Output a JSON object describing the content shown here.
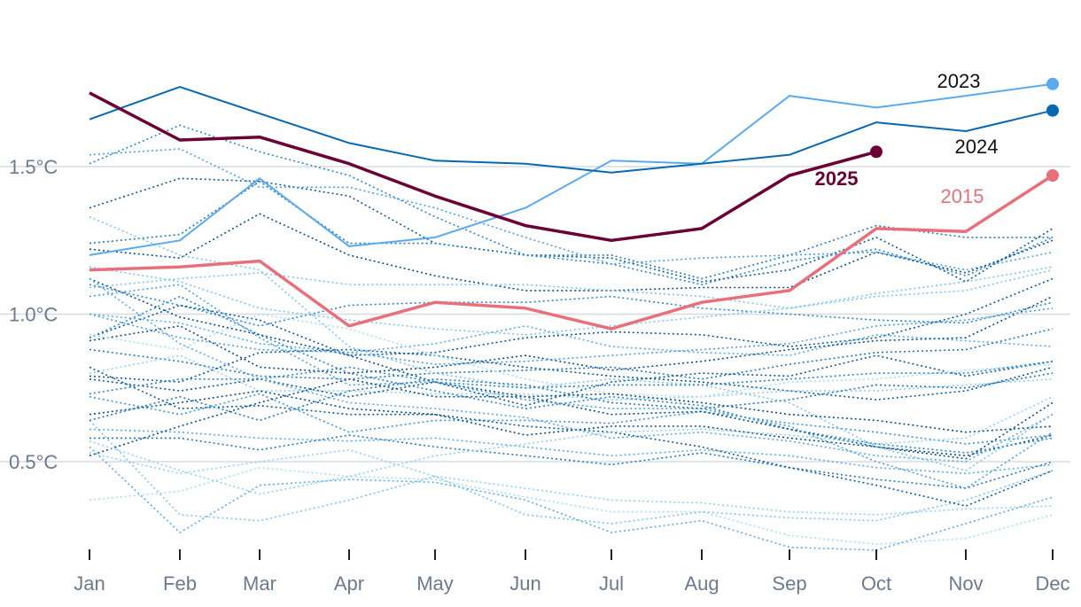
{
  "chart_data": {
    "type": "line",
    "title": "",
    "xlabel": "",
    "ylabel": "",
    "categories": [
      "Jan",
      "Feb",
      "Mar",
      "Apr",
      "May",
      "Jun",
      "Jul",
      "Aug",
      "Sep",
      "Oct",
      "Nov",
      "Dec"
    ],
    "ylim": [
      0.2,
      1.95
    ],
    "yticks": [
      0.5,
      1.0,
      1.5
    ],
    "ytick_labels": [
      "0.5°C",
      "1.0°C",
      "1.5°C"
    ],
    "grid": true,
    "highlight_series": [
      {
        "name": "2025",
        "label": "2025",
        "color": "#6b0036",
        "values": [
          1.75,
          1.59,
          1.6,
          1.51,
          1.4,
          1.3,
          1.25,
          1.29,
          1.47,
          1.55,
          null,
          null
        ]
      },
      {
        "name": "2015",
        "label": "2015",
        "color": "#e8707a",
        "values": [
          1.15,
          1.16,
          1.18,
          0.96,
          1.04,
          1.02,
          0.95,
          1.04,
          1.08,
          1.29,
          1.28,
          1.47
        ]
      },
      {
        "name": "2024",
        "label": "2024",
        "color": "#0768b2",
        "values": [
          1.66,
          1.77,
          1.68,
          1.58,
          1.52,
          1.51,
          1.48,
          1.51,
          1.54,
          1.65,
          1.62,
          1.69
        ]
      },
      {
        "name": "2023",
        "label": "2023",
        "color": "#5aaaf0",
        "values": [
          1.2,
          1.25,
          1.46,
          1.23,
          1.26,
          1.36,
          1.52,
          1.51,
          1.74,
          1.7,
          1.74,
          1.78
        ]
      }
    ],
    "background_series": [
      {
        "color": "#0a5a9e",
        "values": [
          1.36,
          1.46,
          1.45,
          1.4,
          1.24,
          1.2,
          1.19,
          1.11,
          1.15,
          1.26,
          1.11,
          1.29
        ]
      },
      {
        "color": "#1f78c8",
        "values": [
          1.24,
          1.27,
          1.45,
          1.24,
          1.24,
          1.2,
          1.2,
          1.12,
          1.2,
          1.3,
          1.26,
          1.26
        ]
      },
      {
        "color": "#2a85d6",
        "values": [
          1.51,
          1.64,
          1.55,
          1.47,
          1.33,
          1.2,
          1.17,
          1.1,
          1.18,
          1.22,
          1.13,
          1.26
        ]
      },
      {
        "color": "#4ba0e8",
        "values": [
          1.54,
          1.56,
          1.43,
          1.43,
          1.36,
          1.26,
          1.17,
          1.19,
          1.2,
          1.21,
          1.15,
          1.21
        ]
      },
      {
        "color": "#0a4e8c",
        "values": [
          1.22,
          1.19,
          1.34,
          1.2,
          1.13,
          1.08,
          1.08,
          1.09,
          1.09,
          1.21,
          1.14,
          1.25
        ]
      },
      {
        "color": "#7cc4f4",
        "values": [
          1.09,
          1.12,
          1.14,
          1.1,
          1.1,
          1.1,
          1.08,
          1.06,
          1.02,
          1.07,
          1.11,
          1.16
        ]
      },
      {
        "color": "#2a85d6",
        "values": [
          1.1,
          1.03,
          0.96,
          1.03,
          1.04,
          1.04,
          1.06,
          1.02,
          1.0,
          0.98,
          0.97,
          1.04
        ]
      },
      {
        "color": "#0a5a9e",
        "values": [
          0.92,
          1.03,
          0.98,
          0.86,
          0.87,
          0.92,
          0.94,
          0.93,
          0.89,
          0.92,
          1.0,
          1.12
        ]
      },
      {
        "color": "#5aaaf0",
        "values": [
          1.0,
          0.97,
          0.9,
          0.87,
          0.9,
          0.96,
          0.89,
          0.87,
          0.86,
          0.93,
          0.91,
          0.89
        ]
      },
      {
        "color": "#0a4e8c",
        "values": [
          0.91,
          0.96,
          0.82,
          0.8,
          0.82,
          0.86,
          0.81,
          0.84,
          0.88,
          0.91,
          0.92,
          1.06
        ]
      },
      {
        "color": "#1f78c8",
        "values": [
          0.88,
          0.84,
          0.79,
          0.78,
          0.8,
          0.81,
          0.82,
          0.78,
          0.83,
          0.87,
          0.88,
          0.95
        ]
      },
      {
        "color": "#8fd0f7",
        "values": [
          0.8,
          0.86,
          0.74,
          0.74,
          0.73,
          0.73,
          0.71,
          0.72,
          0.74,
          0.74,
          0.76,
          0.78
        ]
      },
      {
        "color": "#0a5a9e",
        "values": [
          0.78,
          0.74,
          0.78,
          0.72,
          0.77,
          0.69,
          0.77,
          0.8,
          0.79,
          0.86,
          0.79,
          0.84
        ]
      },
      {
        "color": "#3a95e0",
        "values": [
          0.72,
          0.66,
          0.73,
          0.6,
          0.64,
          0.64,
          0.63,
          0.67,
          0.63,
          0.6,
          0.56,
          0.59
        ]
      },
      {
        "color": "#0a4e8c",
        "values": [
          0.66,
          0.7,
          0.74,
          0.68,
          0.66,
          0.59,
          0.62,
          0.62,
          0.58,
          0.55,
          0.52,
          0.59
        ]
      },
      {
        "color": "#5aaaf0",
        "values": [
          0.61,
          0.6,
          0.58,
          0.57,
          0.58,
          0.55,
          0.52,
          0.54,
          0.52,
          0.48,
          0.46,
          0.49
        ]
      },
      {
        "color": "#1f78c8",
        "values": [
          0.58,
          0.58,
          0.54,
          0.59,
          0.55,
          0.52,
          0.49,
          0.53,
          0.48,
          0.44,
          0.41,
          0.5
        ]
      },
      {
        "color": "#8fd0f7",
        "values": [
          0.53,
          0.46,
          0.5,
          0.54,
          0.45,
          0.41,
          0.37,
          0.36,
          0.33,
          0.32,
          0.34,
          0.35
        ]
      },
      {
        "color": "#a7dcfa",
        "values": [
          0.37,
          0.4,
          0.48,
          0.45,
          0.44,
          0.38,
          0.33,
          0.33,
          0.25,
          0.22,
          0.24,
          0.32
        ]
      },
      {
        "color": "#5aaaf0",
        "values": [
          0.55,
          0.26,
          0.42,
          0.44,
          0.43,
          0.37,
          0.26,
          0.3,
          0.21,
          0.2,
          0.29,
          0.38
        ]
      },
      {
        "color": "#7cc4f4",
        "values": [
          0.64,
          0.32,
          0.3,
          0.37,
          0.45,
          0.32,
          0.29,
          0.33,
          0.31,
          0.3,
          0.37,
          0.47
        ]
      },
      {
        "color": "#0a5a9e",
        "values": [
          0.82,
          0.68,
          0.69,
          0.66,
          0.66,
          0.62,
          0.6,
          0.55,
          0.48,
          0.42,
          0.35,
          0.47
        ]
      },
      {
        "color": "#2a85d6",
        "values": [
          0.92,
          1.06,
          0.93,
          0.8,
          0.74,
          0.68,
          0.72,
          0.69,
          0.61,
          0.56,
          0.53,
          0.58
        ]
      },
      {
        "color": "#0a4e8c",
        "values": [
          1.12,
          0.99,
          0.93,
          0.86,
          0.77,
          0.72,
          0.66,
          0.67,
          0.61,
          0.55,
          0.51,
          0.7
        ]
      },
      {
        "color": "#4ba0e8",
        "values": [
          1.06,
          1.1,
          0.92,
          0.76,
          0.77,
          0.71,
          0.68,
          0.68,
          0.62,
          0.5,
          0.41,
          0.6
        ]
      },
      {
        "color": "#7cc4f4",
        "values": [
          1.33,
          1.2,
          1.15,
          0.89,
          0.8,
          0.75,
          0.78,
          0.76,
          0.7,
          0.55,
          0.47,
          0.66
        ]
      },
      {
        "color": "#0a5a9e",
        "values": [
          0.79,
          0.77,
          0.87,
          0.88,
          0.86,
          0.82,
          0.79,
          0.77,
          0.74,
          0.71,
          0.74,
          0.82
        ]
      },
      {
        "color": "#a7dcfa",
        "values": [
          0.93,
          0.88,
          1.0,
          0.95,
          0.86,
          0.78,
          0.73,
          0.72,
          0.77,
          0.78,
          0.81,
          0.83
        ]
      },
      {
        "color": "#1f78c8",
        "values": [
          0.64,
          0.72,
          0.64,
          0.74,
          0.78,
          0.76,
          0.7,
          0.68,
          0.71,
          0.76,
          0.75,
          0.8
        ]
      },
      {
        "color": "#5aaaf0",
        "values": [
          1.12,
          0.9,
          0.78,
          0.7,
          0.68,
          0.65,
          0.58,
          0.6,
          0.57,
          0.52,
          0.5,
          0.66
        ]
      },
      {
        "color": "#0a4e8c",
        "values": [
          0.52,
          0.62,
          0.7,
          0.78,
          0.72,
          0.72,
          0.73,
          0.7,
          0.66,
          0.64,
          0.6,
          0.62
        ]
      },
      {
        "color": "#8fd0f7",
        "values": [
          0.57,
          0.47,
          0.39,
          0.45,
          0.52,
          0.56,
          0.6,
          0.61,
          0.59,
          0.56,
          0.58,
          0.72
        ]
      },
      {
        "color": "#2a85d6",
        "values": [
          0.73,
          0.78,
          0.78,
          0.82,
          0.77,
          0.75,
          0.76,
          0.76,
          0.78,
          0.8,
          0.8,
          0.84
        ]
      },
      {
        "color": "#4ba0e8",
        "values": [
          1.0,
          0.92,
          0.88,
          0.87,
          0.83,
          0.84,
          0.86,
          0.88,
          0.9,
          0.96,
          0.98,
          1.02
        ]
      },
      {
        "color": "#7cc4f4",
        "values": [
          1.16,
          1.11,
          1.02,
          0.98,
          0.95,
          0.93,
          0.96,
          0.99,
          1.02,
          1.06,
          1.08,
          1.15
        ]
      }
    ]
  }
}
